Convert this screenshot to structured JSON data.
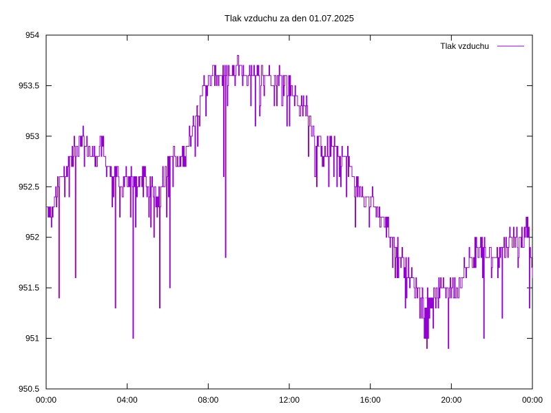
{
  "chart_data": {
    "type": "line",
    "title": "Tlak vzduchu za den 01.07.2025",
    "xlabel": "",
    "ylabel": "",
    "x_range_hours": [
      0,
      24
    ],
    "x_ticks": [
      "00:00",
      "04:00",
      "08:00",
      "12:00",
      "16:00",
      "20:00",
      "00:00"
    ],
    "ylim": [
      950.5,
      954
    ],
    "y_ticks": [
      "950.5",
      "951",
      "951.5",
      "952",
      "952.5",
      "953",
      "953.5",
      "954"
    ],
    "legend_position": "top-right",
    "grid": false,
    "series": [
      {
        "name": "Tlak vzduchu",
        "color": "#9400d3",
        "x_hours": [
          0.0,
          0.25,
          0.5,
          0.75,
          1.0,
          1.25,
          1.5,
          1.75,
          2.0,
          2.25,
          2.5,
          2.75,
          3.0,
          3.25,
          3.5,
          3.75,
          4.0,
          4.25,
          4.5,
          4.75,
          5.0,
          5.25,
          5.5,
          5.75,
          6.0,
          6.25,
          6.5,
          6.75,
          7.0,
          7.25,
          7.5,
          7.75,
          8.0,
          8.25,
          8.5,
          8.75,
          9.0,
          9.25,
          9.5,
          9.75,
          10.0,
          10.25,
          10.5,
          10.75,
          11.0,
          11.25,
          11.5,
          11.75,
          12.0,
          12.25,
          12.5,
          12.75,
          13.0,
          13.25,
          13.5,
          13.75,
          14.0,
          14.25,
          14.5,
          14.75,
          15.0,
          15.25,
          15.5,
          15.75,
          16.0,
          16.25,
          16.5,
          16.75,
          17.0,
          17.25,
          17.5,
          17.75,
          18.0,
          18.25,
          18.5,
          18.75,
          19.0,
          19.25,
          19.5,
          19.75,
          20.0,
          20.25,
          20.5,
          20.75,
          21.0,
          21.25,
          21.5,
          21.75,
          22.0,
          22.25,
          22.5,
          22.75,
          23.0,
          23.25,
          23.5,
          23.75,
          24.0
        ],
        "values": [
          952.3,
          952.2,
          952.4,
          952.6,
          952.7,
          952.8,
          952.9,
          953.0,
          952.9,
          952.8,
          952.8,
          952.9,
          952.7,
          952.6,
          952.6,
          952.5,
          952.6,
          952.6,
          952.5,
          952.6,
          952.5,
          952.5,
          952.4,
          952.6,
          952.7,
          952.8,
          952.7,
          952.8,
          952.9,
          953.1,
          953.3,
          953.5,
          953.5,
          953.6,
          953.6,
          953.6,
          953.6,
          953.6,
          953.7,
          953.6,
          953.6,
          953.6,
          953.6,
          953.6,
          953.6,
          953.6,
          953.6,
          953.6,
          953.5,
          953.4,
          953.3,
          953.3,
          953.2,
          953.0,
          952.9,
          952.8,
          952.9,
          952.9,
          952.8,
          952.8,
          952.7,
          952.5,
          952.5,
          952.4,
          952.4,
          952.3,
          952.2,
          952.1,
          952.0,
          951.9,
          951.8,
          951.7,
          951.6,
          951.5,
          951.5,
          951.4,
          951.4,
          951.4,
          951.5,
          951.5,
          951.5,
          951.5,
          951.6,
          951.7,
          951.8,
          951.9,
          951.9,
          951.8,
          951.8,
          951.8,
          951.9,
          951.9,
          952.0,
          952.0,
          952.0,
          952.1,
          951.6
        ]
      }
    ],
    "annotations": [
      {
        "x_hours": 0.62,
        "value": 951.4,
        "note": "spike"
      },
      {
        "x_hours": 1.45,
        "value": 951.6,
        "note": "spike"
      },
      {
        "x_hours": 3.4,
        "value": 951.3,
        "note": "spike"
      },
      {
        "x_hours": 4.28,
        "value": 951.0,
        "note": "spike"
      },
      {
        "x_hours": 5.6,
        "value": 951.3,
        "note": "spike"
      },
      {
        "x_hours": 6.1,
        "value": 951.5,
        "note": "spike"
      },
      {
        "x_hours": 8.75,
        "value": 952.6,
        "note": "spike"
      },
      {
        "x_hours": 8.85,
        "value": 951.8,
        "note": "spike"
      },
      {
        "x_hours": 18.85,
        "value": 951.0,
        "note": "spike"
      },
      {
        "x_hours": 19.85,
        "value": 950.9,
        "note": "spike"
      },
      {
        "x_hours": 21.6,
        "value": 951.0,
        "note": "spike"
      },
      {
        "x_hours": 22.5,
        "value": 951.2,
        "note": "spike"
      },
      {
        "x_hours": 23.85,
        "value": 951.3,
        "note": "spike"
      }
    ]
  }
}
